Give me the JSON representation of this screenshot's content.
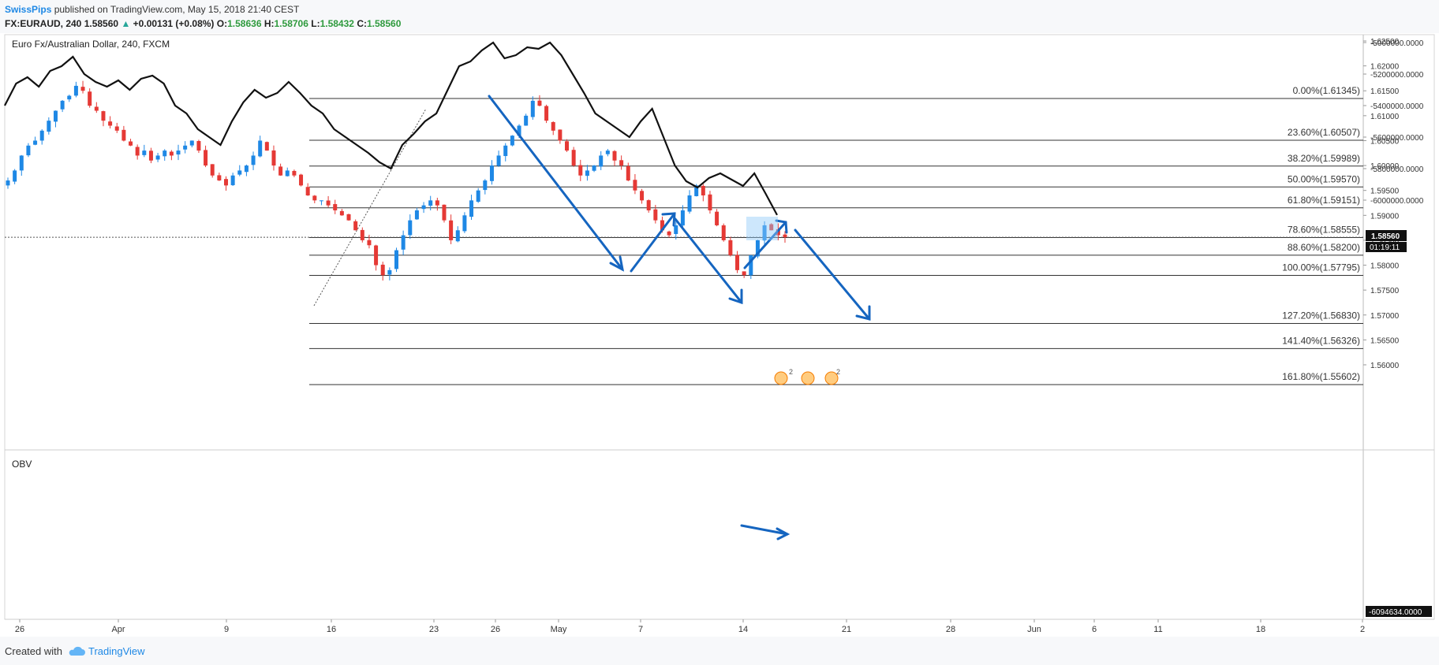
{
  "header": {
    "author": "SwissPips",
    "published": " published on TradingView.com, May 15, 2018 21:40 CEST",
    "symbol": "FX:EURAUD, 240",
    "last": "1.58560",
    "arrow": "▲",
    "change": "+0.00131 (+0.08%)",
    "o_label": "O:",
    "o_val": "1.58636",
    "h_label": "H:",
    "h_val": "1.58706",
    "l_label": "L:",
    "l_val": "1.58432",
    "c_label": "C:",
    "c_val": "1.58560"
  },
  "footer": {
    "created": "Created with",
    "brand": "TradingView"
  },
  "colors": {
    "up": "#26a69a",
    "green": "#2e9a3d",
    "candle_up": "#1e88e5",
    "candle_down": "#e53935",
    "annotation": "#1565c0",
    "fib_line": "#333333",
    "obv_line": "#111111"
  },
  "chart_data": [
    {
      "type": "candlestick",
      "title": "Euro Fx/Australian Dollar, 240, FXCM",
      "ylim": [
        1.5545,
        1.6265
      ],
      "y_ticks": [
        "1.62500",
        "1.62000",
        "1.61500",
        "1.61000",
        "1.60500",
        "1.60000",
        "1.59500",
        "1.59000",
        "1.58500",
        "1.58000",
        "1.57500",
        "1.57000",
        "1.56500",
        "1.56000"
      ],
      "x_ticks": [
        "26",
        "Apr",
        "9",
        "16",
        "23",
        "26",
        "May",
        "7",
        "14",
        "21",
        "28",
        "Jun",
        "6",
        "11",
        "18",
        "2"
      ],
      "current_price_label": "1.58560",
      "current_price": 1.5856,
      "countdown_label": "01:19:11",
      "fibonacci": [
        {
          "label": "0.00%(1.61345)",
          "price": 1.61345
        },
        {
          "label": "23.60%(1.60507)",
          "price": 1.60507
        },
        {
          "label": "38.20%(1.59989)",
          "price": 1.59989
        },
        {
          "label": "50.00%(1.59570)",
          "price": 1.5957
        },
        {
          "label": "61.80%(1.59151)",
          "price": 1.59151
        },
        {
          "label": "78.60%(1.58555)",
          "price": 1.58555
        },
        {
          "label": "88.60%(1.58200)",
          "price": 1.582
        },
        {
          "label": "100.00%(1.57795)",
          "price": 1.57795
        },
        {
          "label": "127.20%(1.56830)",
          "price": 1.5683
        },
        {
          "label": "141.40%(1.56326)",
          "price": 1.56326
        },
        {
          "label": "161.80%(1.55602)",
          "price": 1.55602
        }
      ],
      "close_path": [
        1.597,
        1.599,
        1.602,
        1.604,
        1.605,
        1.607,
        1.609,
        1.611,
        1.613,
        1.614,
        1.616,
        1.615,
        1.612,
        1.611,
        1.609,
        1.608,
        1.607,
        1.605,
        1.604,
        1.602,
        1.603,
        1.601,
        1.602,
        1.603,
        1.602,
        1.603,
        1.604,
        1.605,
        1.603,
        1.6,
        1.598,
        1.597,
        1.596,
        1.598,
        1.599,
        1.6,
        1.602,
        1.605,
        1.603,
        1.6,
        1.598,
        1.599,
        1.598,
        1.596,
        1.594,
        1.593,
        1.593,
        1.592,
        1.591,
        1.59,
        1.589,
        1.587,
        1.585,
        1.584,
        1.58,
        1.578,
        1.579,
        1.583,
        1.586,
        1.589,
        1.591,
        1.592,
        1.593,
        1.592,
        1.589,
        1.585,
        1.587,
        1.59,
        1.593,
        1.595,
        1.597,
        1.6,
        1.602,
        1.604,
        1.606,
        1.608,
        1.61,
        1.613,
        1.612,
        1.609,
        1.607,
        1.605,
        1.603,
        1.6,
        1.598,
        1.599,
        1.6,
        1.602,
        1.603,
        1.601,
        1.6,
        1.597,
        1.595,
        1.593,
        1.591,
        1.589,
        1.587,
        1.586,
        1.588,
        1.591,
        1.594,
        1.596,
        1.594,
        1.591,
        1.588,
        1.585,
        1.582,
        1.579,
        1.578,
        1.582,
        1.585,
        1.588,
        1.587,
        1.586,
        1.5856
      ]
    },
    {
      "type": "line",
      "title": "OBV",
      "ylim": [
        -6180000,
        -4940000
      ],
      "y_ticks": [
        "-5000000.0000",
        "-5200000.0000",
        "-5400000.0000",
        "-5600000.0000",
        "-5800000.0000",
        "-6000000.0000"
      ],
      "current_value_label": "-6094634.0000",
      "values": [
        -5400000,
        -5260000,
        -5220000,
        -5280000,
        -5180000,
        -5150000,
        -5090000,
        -5200000,
        -5250000,
        -5280000,
        -5240000,
        -5300000,
        -5230000,
        -5210000,
        -5260000,
        -5400000,
        -5450000,
        -5550000,
        -5600000,
        -5650000,
        -5500000,
        -5380000,
        -5300000,
        -5350000,
        -5320000,
        -5250000,
        -5320000,
        -5400000,
        -5450000,
        -5550000,
        -5600000,
        -5650000,
        -5700000,
        -5760000,
        -5800000,
        -5650000,
        -5580000,
        -5500000,
        -5450000,
        -5300000,
        -5150000,
        -5120000,
        -5050000,
        -5000000,
        -5100000,
        -5080000,
        -5030000,
        -5040000,
        -5000000,
        -5080000,
        -5200000,
        -5320000,
        -5450000,
        -5500000,
        -5550000,
        -5600000,
        -5500000,
        -5420000,
        -5600000,
        -5780000,
        -5880000,
        -5920000,
        -5860000,
        -5830000,
        -5870000,
        -5910000,
        -5830000,
        -5960000,
        -6094634
      ]
    }
  ],
  "annotations": {
    "events_badge_count": "2"
  }
}
